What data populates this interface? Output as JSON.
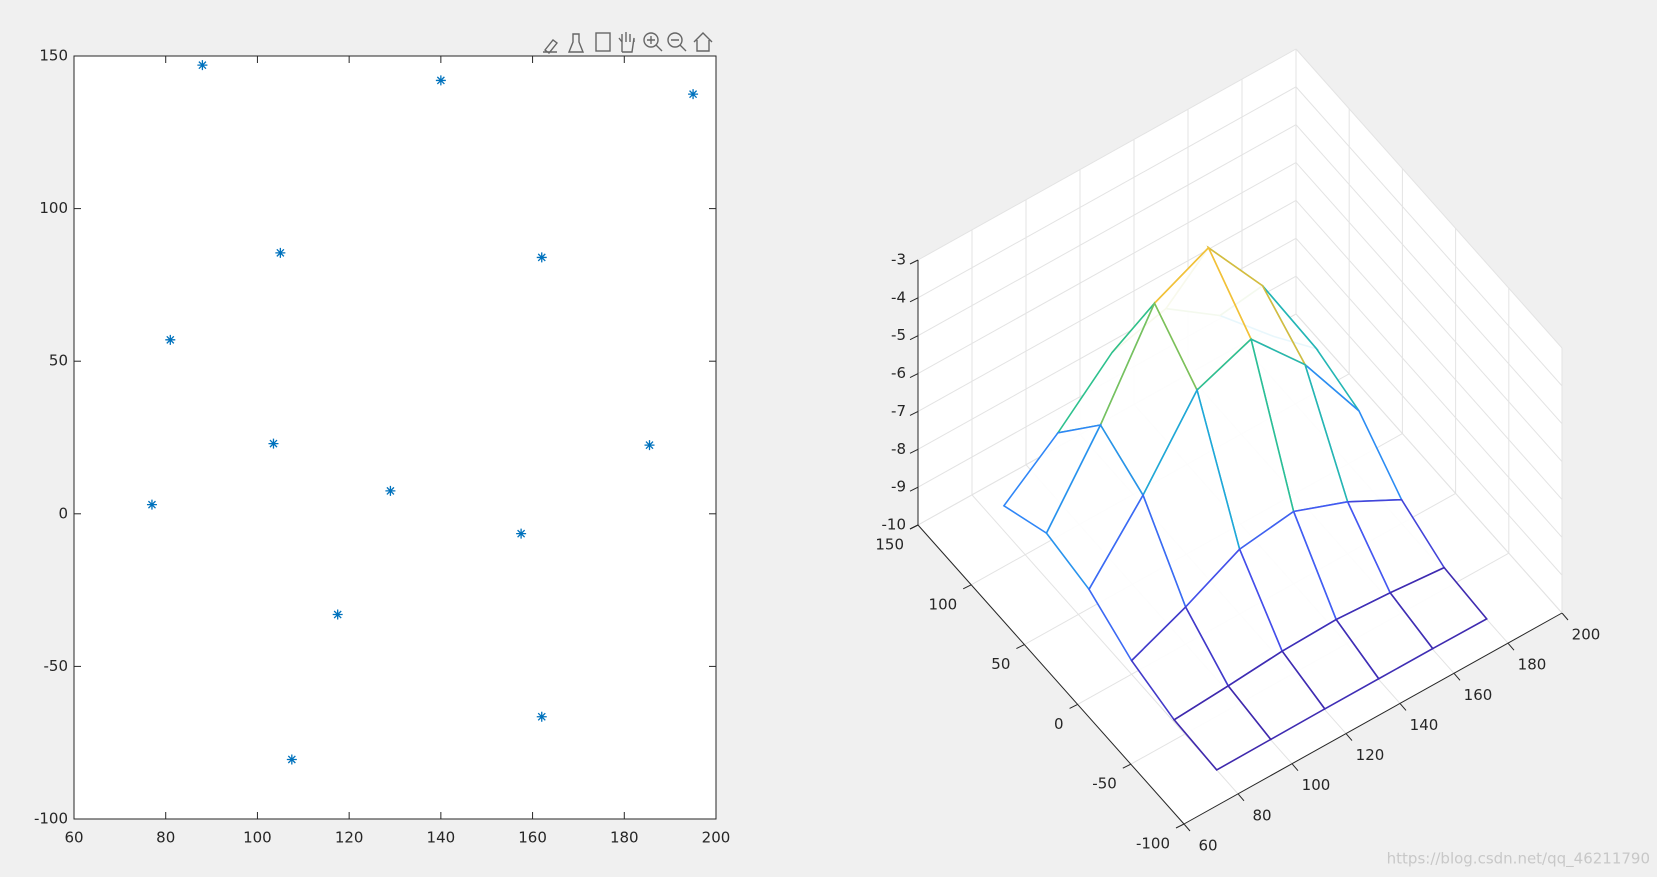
{
  "chart_data": [
    {
      "type": "scatter",
      "marker": "*",
      "color": "#0072bd",
      "x": [
        88,
        140,
        195,
        105,
        162,
        81,
        103.5,
        185.5,
        77,
        129,
        157.5,
        117.5,
        162,
        107.5
      ],
      "y": [
        147,
        142,
        137.5,
        85.5,
        84,
        57,
        23,
        22.5,
        3,
        7.5,
        -6.5,
        -33,
        -66.5,
        -80.5
      ],
      "xlim": [
        60,
        200
      ],
      "ylim": [
        -100,
        150
      ],
      "xticks": [
        60,
        80,
        100,
        120,
        140,
        160,
        180,
        200
      ],
      "yticks": [
        -100,
        -50,
        0,
        50,
        100,
        150
      ],
      "grid": false
    },
    {
      "type": "mesh",
      "x": [
        80,
        100,
        120,
        140,
        160,
        180
      ],
      "y": [
        -80,
        -40,
        0,
        40,
        80,
        120
      ],
      "z": [
        [
          -10,
          -9.99,
          -9.98,
          -9.98,
          -9.98,
          -9.99
        ],
        [
          -9.94,
          -9.84,
          -9.72,
          -9.68,
          -9.77,
          -9.9
        ],
        [
          -9.64,
          -9.02,
          -8.29,
          -8.09,
          -8.63,
          -9.37
        ],
        [
          -9.02,
          -7.33,
          -5.35,
          -4.8,
          -6.27,
          -8.29
        ],
        [
          -8.8,
          -6.74,
          -4.32,
          -3.65,
          -5.45,
          -7.91
        ],
        [
          -9.34,
          -8.21,
          -6.89,
          -6.52,
          -7.5,
          -8.85
        ]
      ],
      "xlim": [
        60,
        200
      ],
      "ylim": [
        -100,
        150
      ],
      "zlim": [
        -10,
        -3
      ],
      "xticks": [
        60,
        80,
        100,
        120,
        140,
        160,
        180,
        200
      ],
      "yticks": [
        -100,
        -50,
        0,
        50,
        100,
        150
      ],
      "zticks": [
        -10,
        -9,
        -8,
        -7,
        -6,
        -5,
        -4,
        -3
      ],
      "grid": true,
      "colormap": [
        "#3e26a8",
        "#4653f2",
        "#2e87f7",
        "#1cacd7",
        "#2ec28a",
        "#a1c146",
        "#f0b93a",
        "#fad72d",
        "#f9fb15"
      ]
    }
  ],
  "watermark": "https://blog.csdn.net/qq_46211790"
}
